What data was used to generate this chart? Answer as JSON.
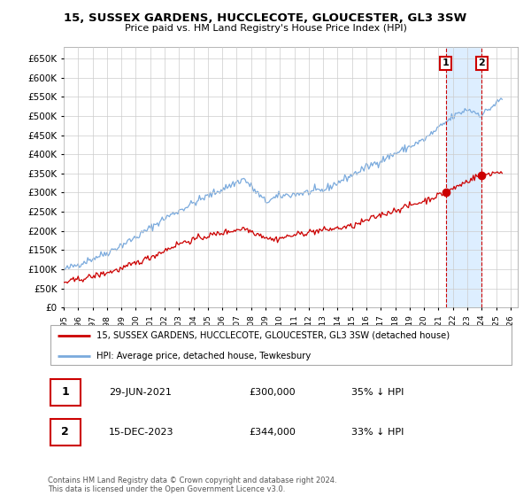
{
  "title": "15, SUSSEX GARDENS, HUCCLECOTE, GLOUCESTER, GL3 3SW",
  "subtitle": "Price paid vs. HM Land Registry's House Price Index (HPI)",
  "legend_line1": "15, SUSSEX GARDENS, HUCCLECOTE, GLOUCESTER, GL3 3SW (detached house)",
  "legend_line2": "HPI: Average price, detached house, Tewkesbury",
  "annotation1_date": "29-JUN-2021",
  "annotation1_price": "£300,000",
  "annotation1_hpi": "35% ↓ HPI",
  "annotation2_date": "15-DEC-2023",
  "annotation2_price": "£344,000",
  "annotation2_hpi": "33% ↓ HPI",
  "footer": "Contains HM Land Registry data © Crown copyright and database right 2024.\nThis data is licensed under the Open Government Licence v3.0.",
  "hpi_color": "#7aaadd",
  "price_color": "#cc0000",
  "annotation_color": "#cc0000",
  "shade_color": "#ddeeff",
  "ylim": [
    0,
    680000
  ],
  "yticks": [
    0,
    50000,
    100000,
    150000,
    200000,
    250000,
    300000,
    350000,
    400000,
    450000,
    500000,
    550000,
    600000,
    650000
  ],
  "ann1_x": 2021.5,
  "ann1_y": 300000,
  "ann2_x": 2024.0,
  "ann2_y": 344000,
  "xlim_left": 1995.0,
  "xlim_right": 2026.5
}
